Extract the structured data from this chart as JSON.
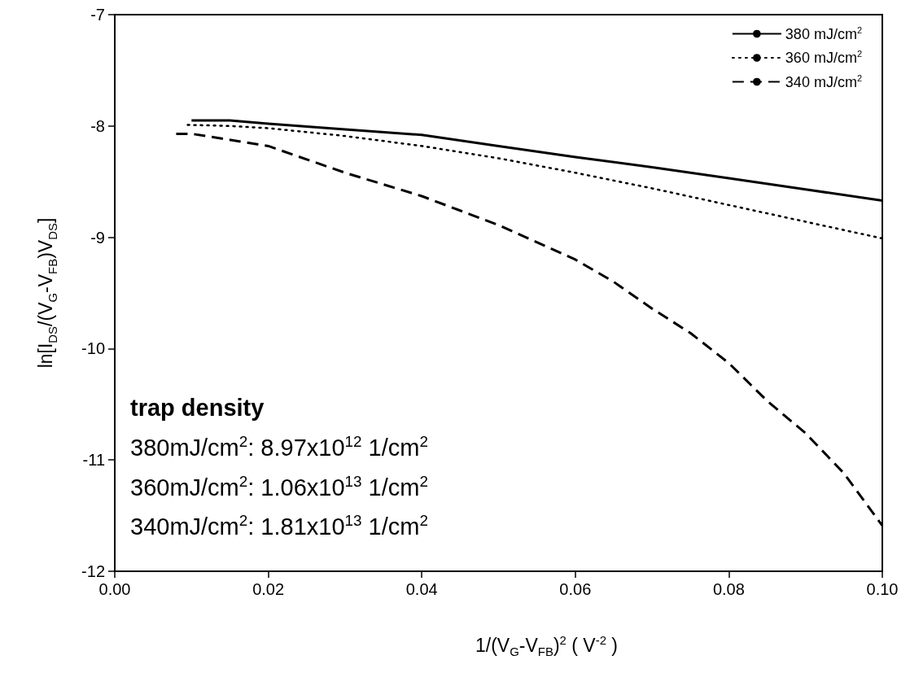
{
  "chart_data": {
    "type": "line",
    "xlabel": "1/(V$_{G}$-V$_{FB}$)$^{2}$ ( V$^{-2}$ )",
    "ylabel": "ln[I$_{DS}$/(V$_{G}$-V$_{FB}$)V$_{DS}$]",
    "xlim": [
      0,
      0.1
    ],
    "xticks": [
      {
        "value": 0,
        "label": "0.00"
      },
      {
        "value": 0.02,
        "label": "0.02"
      },
      {
        "value": 0.04,
        "label": "0.04"
      },
      {
        "value": 0.06,
        "label": "0.06"
      },
      {
        "value": 0.08,
        "label": "0.08"
      },
      {
        "value": 0.1,
        "label": "0.10"
      }
    ],
    "ylim": [
      -12,
      -7
    ],
    "yticks": [
      -12,
      -11,
      -10,
      -9,
      -8,
      -7
    ],
    "grid": false,
    "legend": "top right",
    "marker": "none",
    "series": [
      {
        "name": "380 mJ/cm$^{2}$",
        "color": "#000000",
        "line_style": "solid",
        "x": [
          0.01,
          0.015,
          0.02,
          0.03,
          0.04,
          0.05,
          0.06,
          0.07,
          0.08,
          0.09,
          0.1
        ],
        "values": [
          -7.95,
          -7.95,
          -7.98,
          -8.03,
          -8.08,
          -8.18,
          -8.28,
          -8.37,
          -8.47,
          -8.57,
          -8.67
        ]
      },
      {
        "name": "360 mJ/cm$^{2}$",
        "color": "#000000",
        "line_style": "dotted",
        "x": [
          0.0095,
          0.015,
          0.02,
          0.03,
          0.04,
          0.05,
          0.06,
          0.07,
          0.08,
          0.09,
          0.1
        ],
        "values": [
          -7.99,
          -8.0,
          -8.02,
          -8.09,
          -8.18,
          -8.29,
          -8.42,
          -8.56,
          -8.71,
          -8.86,
          -9.01
        ]
      },
      {
        "name": "340 mJ/cm$^{2}$",
        "color": "#000000",
        "line_style": "dashed",
        "x": [
          0.008,
          0.01,
          0.02,
          0.03,
          0.04,
          0.05,
          0.06,
          0.065,
          0.07,
          0.075,
          0.08,
          0.085,
          0.09,
          0.095,
          0.1
        ],
        "values": [
          -8.07,
          -8.07,
          -8.18,
          -8.42,
          -8.63,
          -8.89,
          -9.2,
          -9.4,
          -9.64,
          -9.86,
          -10.13,
          -10.47,
          -10.76,
          -11.12,
          -11.59
        ]
      }
    ],
    "annotations": [
      "trap density",
      "380mJ/cm$^{2}$: 8.97x10$^{12}$ 1/cm$^{2}$",
      "360mJ/cm$^{2}$: 1.06x10$^{13}$ 1/cm$^{2}$",
      "340mJ/cm$^{2}$: 1.81x10$^{13}$ 1/cm$^{2}$"
    ]
  }
}
